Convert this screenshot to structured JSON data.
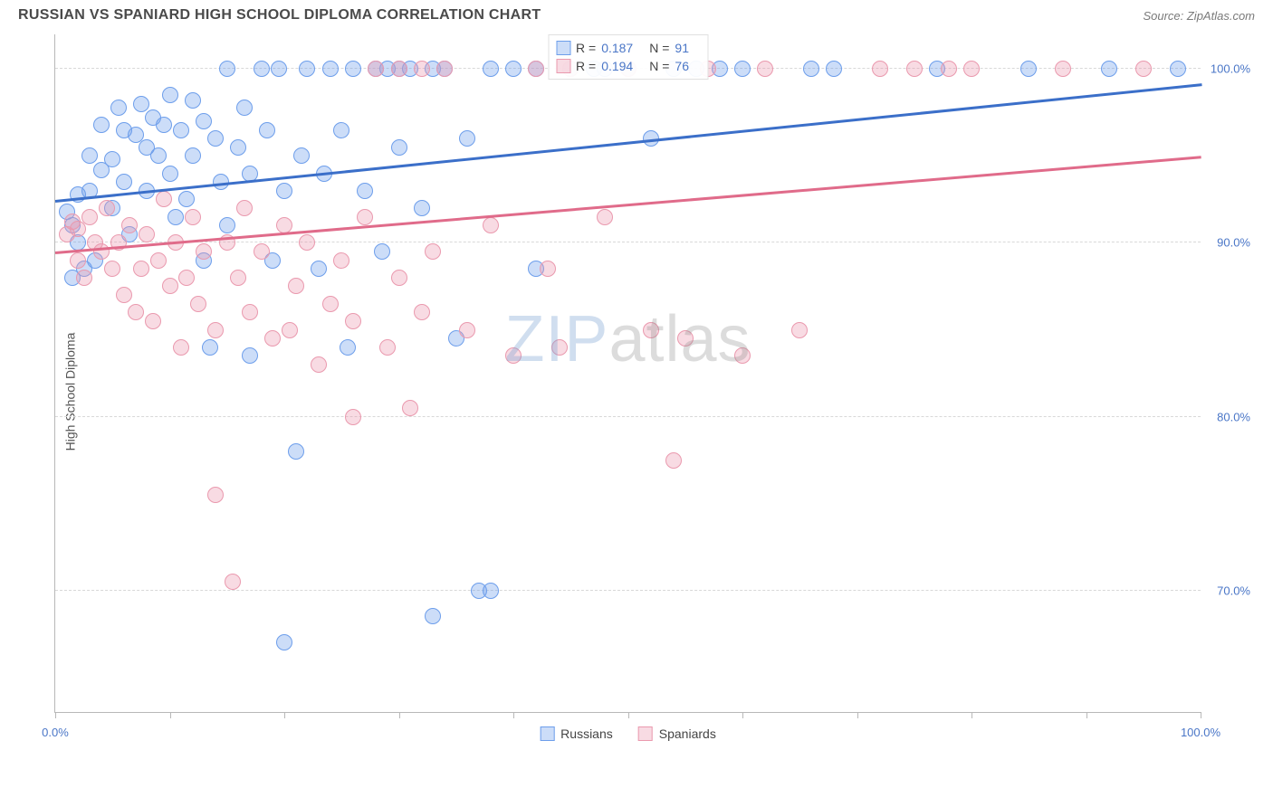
{
  "header": {
    "title": "RUSSIAN VS SPANIARD HIGH SCHOOL DIPLOMA CORRELATION CHART",
    "source": "Source: ZipAtlas.com"
  },
  "chart": {
    "type": "scatter",
    "ylabel": "High School Diploma",
    "xlim": [
      0,
      100
    ],
    "ylim": [
      63,
      102
    ],
    "x_ticks": [
      0,
      10,
      20,
      30,
      40,
      50,
      60,
      70,
      80,
      90,
      100
    ],
    "x_tick_labels": {
      "0": "0.0%",
      "100": "100.0%"
    },
    "y_gridlines": [
      70,
      80,
      90,
      100
    ],
    "y_tick_labels": {
      "70": "70.0%",
      "80": "80.0%",
      "90": "90.0%",
      "100": "100.0%"
    },
    "background_color": "#ffffff",
    "grid_color": "#d8d8d8",
    "axis_color": "#b8b8b8",
    "label_color": "#4a76c7",
    "watermark": {
      "part1": "ZIP",
      "part2": "atlas"
    },
    "series": [
      {
        "name": "Russians",
        "fill_color": "rgba(109,158,235,0.35)",
        "stroke_color": "#6d9eeb",
        "trend_color": "#3b6fc9",
        "trend": {
          "y_at_x0": 92.5,
          "y_at_x100": 99.2
        },
        "stats": {
          "R": "0.187",
          "N": "91"
        },
        "marker_radius": 9,
        "points": [
          [
            1,
            91.8
          ],
          [
            1.5,
            88
          ],
          [
            1.5,
            91
          ],
          [
            2,
            92.8
          ],
          [
            2,
            90
          ],
          [
            2.5,
            88.5
          ],
          [
            3,
            95
          ],
          [
            3,
            93
          ],
          [
            3.5,
            89
          ],
          [
            4,
            96.8
          ],
          [
            4,
            94.2
          ],
          [
            5,
            94.8
          ],
          [
            5,
            92
          ],
          [
            5.5,
            97.8
          ],
          [
            6,
            96.5
          ],
          [
            6,
            93.5
          ],
          [
            6.5,
            90.5
          ],
          [
            7,
            96.2
          ],
          [
            7.5,
            98
          ],
          [
            8,
            95.5
          ],
          [
            8,
            93
          ],
          [
            8.5,
            97.2
          ],
          [
            9,
            95
          ],
          [
            9.5,
            96.8
          ],
          [
            10,
            94
          ],
          [
            10,
            98.5
          ],
          [
            10.5,
            91.5
          ],
          [
            11,
            96.5
          ],
          [
            11.5,
            92.5
          ],
          [
            12,
            98.2
          ],
          [
            12,
            95
          ],
          [
            13,
            89
          ],
          [
            13,
            97
          ],
          [
            13.5,
            84
          ],
          [
            14,
            96
          ],
          [
            14.5,
            93.5
          ],
          [
            15,
            100
          ],
          [
            15,
            91
          ],
          [
            16,
            95.5
          ],
          [
            16.5,
            97.8
          ],
          [
            17,
            83.5
          ],
          [
            17,
            94
          ],
          [
            18,
            100
          ],
          [
            18.5,
            96.5
          ],
          [
            19,
            89
          ],
          [
            19.5,
            100
          ],
          [
            20,
            93
          ],
          [
            20,
            67
          ],
          [
            21,
            78
          ],
          [
            21.5,
            95
          ],
          [
            22,
            100
          ],
          [
            23,
            88.5
          ],
          [
            23.5,
            94
          ],
          [
            24,
            100
          ],
          [
            25,
            96.5
          ],
          [
            25.5,
            84
          ],
          [
            26,
            100
          ],
          [
            27,
            93
          ],
          [
            28,
            100
          ],
          [
            28.5,
            89.5
          ],
          [
            29,
            100
          ],
          [
            30,
            95.5
          ],
          [
            30,
            100
          ],
          [
            31,
            100
          ],
          [
            32,
            92
          ],
          [
            33,
            100
          ],
          [
            33,
            68.5
          ],
          [
            34,
            100
          ],
          [
            35,
            84.5
          ],
          [
            36,
            96
          ],
          [
            37,
            70
          ],
          [
            38,
            100
          ],
          [
            38,
            70
          ],
          [
            40,
            100
          ],
          [
            42,
            88.5
          ],
          [
            42,
            100
          ],
          [
            45,
            100
          ],
          [
            47,
            100
          ],
          [
            48,
            100
          ],
          [
            50,
            100
          ],
          [
            52,
            96
          ],
          [
            54,
            100
          ],
          [
            56,
            100
          ],
          [
            58,
            100
          ],
          [
            60,
            100
          ],
          [
            66,
            100
          ],
          [
            68,
            100
          ],
          [
            77,
            100
          ],
          [
            85,
            100
          ],
          [
            92,
            100
          ],
          [
            98,
            100
          ]
        ]
      },
      {
        "name": "Spaniards",
        "fill_color": "rgba(234,153,174,0.35)",
        "stroke_color": "#ea99ae",
        "trend_color": "#e06b8a",
        "trend": {
          "y_at_x0": 89.5,
          "y_at_x100": 95.0
        },
        "stats": {
          "R": "0.194",
          "N": "76"
        },
        "marker_radius": 9,
        "points": [
          [
            1,
            90.5
          ],
          [
            1.5,
            91.2
          ],
          [
            2,
            89
          ],
          [
            2,
            90.8
          ],
          [
            2.5,
            88
          ],
          [
            3,
            91.5
          ],
          [
            3.5,
            90
          ],
          [
            4,
            89.5
          ],
          [
            4.5,
            92
          ],
          [
            5,
            88.5
          ],
          [
            5.5,
            90
          ],
          [
            6,
            87
          ],
          [
            6.5,
            91
          ],
          [
            7,
            86
          ],
          [
            7.5,
            88.5
          ],
          [
            8,
            90.5
          ],
          [
            8.5,
            85.5
          ],
          [
            9,
            89
          ],
          [
            9.5,
            92.5
          ],
          [
            10,
            87.5
          ],
          [
            10.5,
            90
          ],
          [
            11,
            84
          ],
          [
            11.5,
            88
          ],
          [
            12,
            91.5
          ],
          [
            12.5,
            86.5
          ],
          [
            13,
            89.5
          ],
          [
            14,
            85
          ],
          [
            14,
            75.5
          ],
          [
            15,
            90
          ],
          [
            15.5,
            70.5
          ],
          [
            16,
            88
          ],
          [
            16.5,
            92
          ],
          [
            17,
            86
          ],
          [
            18,
            89.5
          ],
          [
            19,
            84.5
          ],
          [
            20,
            91
          ],
          [
            20.5,
            85
          ],
          [
            21,
            87.5
          ],
          [
            22,
            90
          ],
          [
            23,
            83
          ],
          [
            24,
            86.5
          ],
          [
            25,
            89
          ],
          [
            26,
            85.5
          ],
          [
            26,
            80
          ],
          [
            27,
            91.5
          ],
          [
            28,
            100
          ],
          [
            29,
            84
          ],
          [
            30,
            88
          ],
          [
            30,
            100
          ],
          [
            31,
            80.5
          ],
          [
            32,
            86
          ],
          [
            32,
            100
          ],
          [
            33,
            89.5
          ],
          [
            34,
            100
          ],
          [
            36,
            85
          ],
          [
            38,
            91
          ],
          [
            40,
            83.5
          ],
          [
            42,
            100
          ],
          [
            43,
            88.5
          ],
          [
            44,
            84
          ],
          [
            45,
            100
          ],
          [
            48,
            91.5
          ],
          [
            50,
            100
          ],
          [
            52,
            85
          ],
          [
            54,
            77.5
          ],
          [
            55,
            84.5
          ],
          [
            57,
            100
          ],
          [
            60,
            83.5
          ],
          [
            62,
            100
          ],
          [
            65,
            85
          ],
          [
            72,
            100
          ],
          [
            75,
            100
          ],
          [
            78,
            100
          ],
          [
            80,
            100
          ],
          [
            88,
            100
          ],
          [
            95,
            100
          ]
        ]
      }
    ]
  },
  "legend_bottom": [
    {
      "label": "Russians",
      "fill": "rgba(109,158,235,0.35)",
      "stroke": "#6d9eeb"
    },
    {
      "label": "Spaniards",
      "fill": "rgba(234,153,174,0.35)",
      "stroke": "#ea99ae"
    }
  ]
}
